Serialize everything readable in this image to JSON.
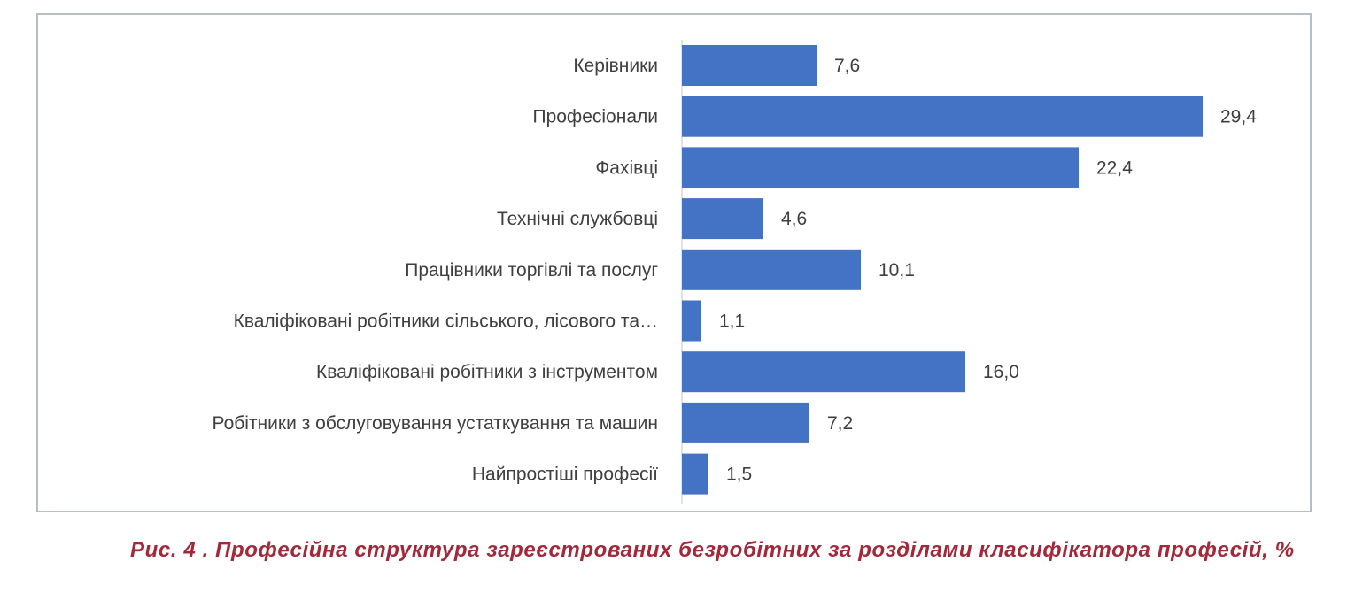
{
  "chart_data": {
    "type": "bar",
    "orientation": "horizontal",
    "categories": [
      "Керівники",
      "Професіонали",
      "Фахівці",
      "Технічні службовці",
      "Працівники торгівлі та послуг",
      "Кваліфіковані робітники сільського, лісового та…",
      "Кваліфіковані робітники з інструментом",
      "Робітники з обслуговування устаткування та машин",
      "Найпростіші професії"
    ],
    "values": [
      7.6,
      29.4,
      22.4,
      4.6,
      10.1,
      1.1,
      16.0,
      7.2,
      1.5
    ],
    "value_labels": [
      "7,6",
      "29,4",
      "22,4",
      "4,6",
      "10,1",
      "1,1",
      "16,0",
      "7,2",
      "1,5"
    ],
    "xlim": [
      0,
      30
    ],
    "bar_color": "#4472c4",
    "grid": false
  },
  "caption": "Рис. 4 . Професійна структура зареєстрованих безробітних за розділами  класифікатора професій, %"
}
